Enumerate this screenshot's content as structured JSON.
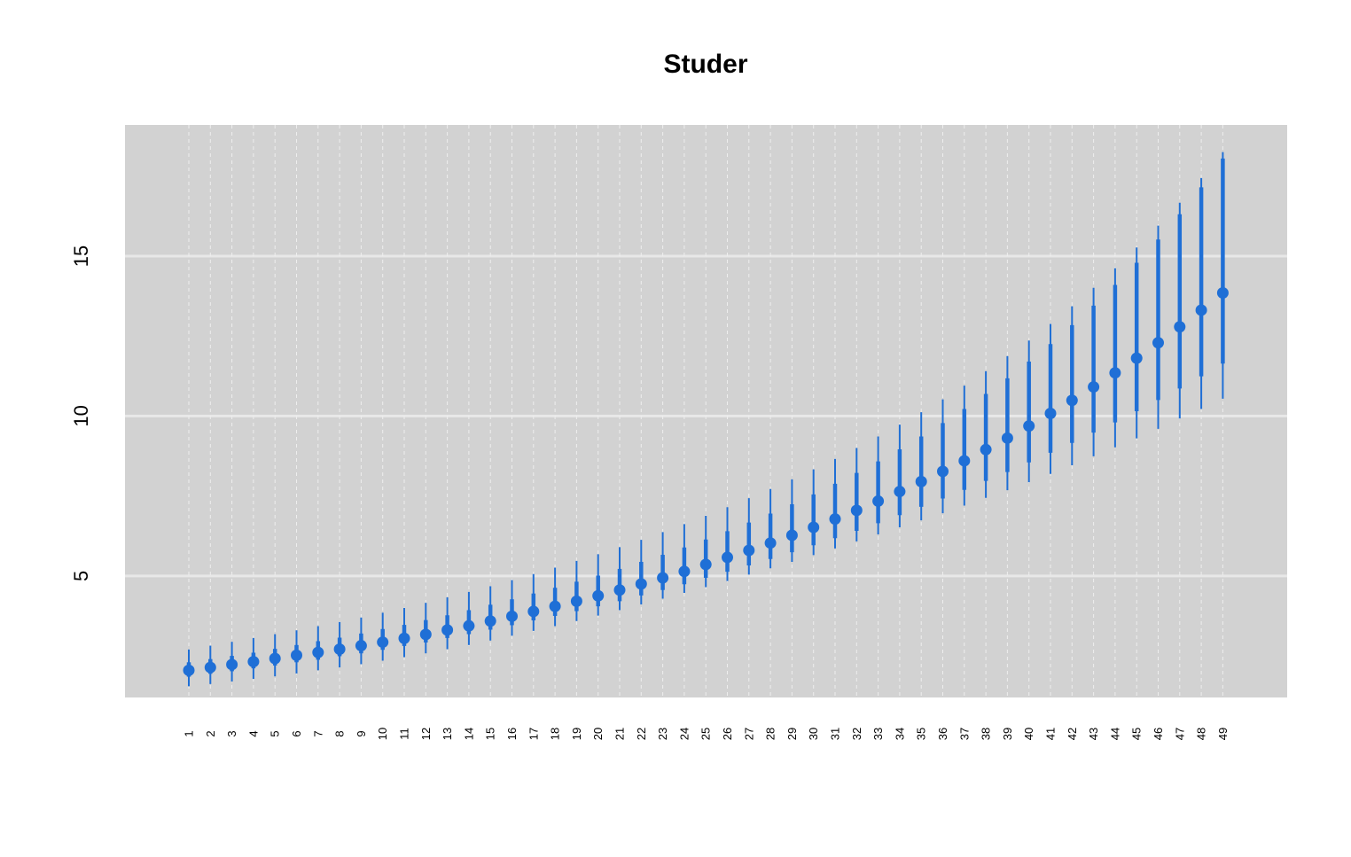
{
  "chart_data": {
    "type": "scatter",
    "title": "Studer",
    "xlabel": "",
    "ylabel": "",
    "categories": [
      "1",
      "2",
      "3",
      "4",
      "5",
      "6",
      "7",
      "8",
      "9",
      "10",
      "11",
      "12",
      "13",
      "14",
      "15",
      "16",
      "17",
      "18",
      "19",
      "20",
      "21",
      "22",
      "23",
      "24",
      "25",
      "26",
      "27",
      "28",
      "29",
      "30",
      "31",
      "32",
      "33",
      "34",
      "35",
      "36",
      "37",
      "38",
      "39",
      "40",
      "41",
      "42",
      "43",
      "44",
      "45",
      "46",
      "47",
      "48",
      "49"
    ],
    "ylim": [
      1.2,
      19.1
    ],
    "yticks": [
      5,
      10,
      15
    ],
    "grid": true,
    "legend": "none",
    "colors": {
      "points": "#1f6fd6",
      "panel": "#d2d2d2",
      "grid": "#e8e8e8",
      "vgrid": "#eeeeee"
    },
    "series": [
      {
        "median": [
          2.05,
          2.14,
          2.23,
          2.32,
          2.42,
          2.52,
          2.61,
          2.71,
          2.82,
          2.93,
          3.05,
          3.17,
          3.31,
          3.44,
          3.59,
          3.74,
          3.89,
          4.05,
          4.21,
          4.38,
          4.56,
          4.75,
          4.94,
          5.14,
          5.36,
          5.58,
          5.8,
          6.03,
          6.27,
          6.52,
          6.78,
          7.05,
          7.34,
          7.64,
          7.95,
          8.27,
          8.6,
          8.95,
          9.31,
          9.69,
          10.08,
          10.49,
          10.91,
          11.35,
          11.81,
          12.29,
          12.79,
          13.31,
          13.85
        ],
        "inner_low": [
          1.85,
          1.94,
          2.02,
          2.11,
          2.2,
          2.3,
          2.38,
          2.49,
          2.58,
          2.69,
          2.81,
          2.92,
          3.06,
          3.18,
          3.32,
          3.46,
          3.61,
          3.75,
          3.9,
          4.05,
          4.21,
          4.39,
          4.56,
          4.74,
          4.94,
          5.13,
          5.33,
          5.53,
          5.74,
          5.96,
          6.18,
          6.41,
          6.65,
          6.9,
          7.16,
          7.42,
          7.69,
          7.97,
          8.25,
          8.55,
          8.85,
          9.16,
          9.48,
          9.8,
          10.15,
          10.5,
          10.86,
          11.24,
          11.64
        ],
        "inner_high": [
          2.3,
          2.4,
          2.5,
          2.6,
          2.72,
          2.84,
          2.96,
          3.07,
          3.2,
          3.34,
          3.47,
          3.62,
          3.77,
          3.93,
          4.1,
          4.27,
          4.45,
          4.63,
          4.82,
          5.01,
          5.22,
          5.44,
          5.66,
          5.89,
          6.14,
          6.4,
          6.67,
          6.95,
          7.24,
          7.55,
          7.88,
          8.22,
          8.58,
          8.96,
          9.36,
          9.78,
          10.22,
          10.69,
          11.18,
          11.7,
          12.25,
          12.84,
          13.45,
          14.1,
          14.79,
          15.52,
          16.31,
          17.15,
          18.05
        ],
        "outer_low": [
          1.55,
          1.62,
          1.7,
          1.78,
          1.86,
          1.95,
          2.05,
          2.14,
          2.24,
          2.35,
          2.46,
          2.58,
          2.71,
          2.84,
          2.98,
          3.13,
          3.28,
          3.43,
          3.59,
          3.76,
          3.93,
          4.11,
          4.29,
          4.47,
          4.65,
          4.84,
          5.04,
          5.24,
          5.44,
          5.65,
          5.86,
          6.08,
          6.3,
          6.52,
          6.74,
          6.96,
          7.2,
          7.44,
          7.68,
          7.93,
          8.19,
          8.46,
          8.74,
          9.02,
          9.3,
          9.6,
          9.92,
          10.22,
          10.54
        ],
        "outer_high": [
          2.7,
          2.82,
          2.94,
          3.06,
          3.18,
          3.3,
          3.43,
          3.56,
          3.7,
          3.85,
          4.0,
          4.16,
          4.33,
          4.5,
          4.68,
          4.87,
          5.06,
          5.26,
          5.47,
          5.68,
          5.9,
          6.13,
          6.37,
          6.62,
          6.88,
          7.15,
          7.43,
          7.72,
          8.02,
          8.33,
          8.66,
          9.0,
          9.36,
          9.73,
          10.12,
          10.52,
          10.95,
          11.4,
          11.87,
          12.36,
          12.88,
          13.43,
          14.01,
          14.62,
          15.27,
          15.95,
          16.67,
          17.44,
          18.25
        ]
      }
    ]
  }
}
